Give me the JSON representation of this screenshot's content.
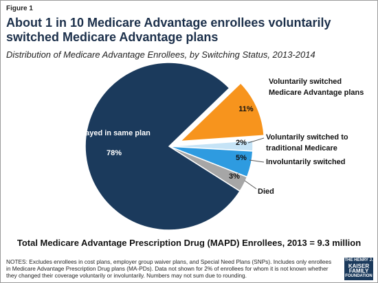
{
  "figure_label": "Figure 1",
  "chart_data": {
    "type": "pie",
    "title": "About 1 in 10 Medicare Advantage enrollees voluntarily switched Medicare Advantage plans",
    "subtitle": "Distribution of Medicare Advantage Enrollees, by Switching Status, 2013-2014",
    "categories": [
      "Voluntarily  switched\nMedicare Advantage plans",
      "Voluntarily switched to\ntraditional Medicare",
      "Involuntarily switched",
      "Died",
      "Stayed in same plan"
    ],
    "values": [
      11,
      2,
      5,
      3,
      78
    ],
    "value_labels": [
      "11%",
      "2%",
      "5%",
      "3%",
      "78%"
    ],
    "colors": [
      "#f7941d",
      "#c5e3f6",
      "#2e9be0",
      "#a6a6a6",
      "#1b3a5c"
    ],
    "exploded": [
      true,
      false,
      false,
      false,
      false
    ]
  },
  "footer": "Total Medicare Advantage Prescription Drug (MAPD) Enrollees, 2013 = 9.3 million",
  "notes": "NOTES: Excludes enrollees in cost plans, employer group waiver plans, and Special Need Plans (SNPs).  Includes only enrollees in Medicare Advantage Prescription Drug plans (MA-PDs).  Data not shown for 2% of enrollees for whom it is not known whether they changed their coverage voluntarily or involuntarily.  Numbers may not sum due to rounding.",
  "logo": [
    "THE HENRY J.",
    "KAISER",
    "FAMILY",
    "FOUNDATION"
  ]
}
